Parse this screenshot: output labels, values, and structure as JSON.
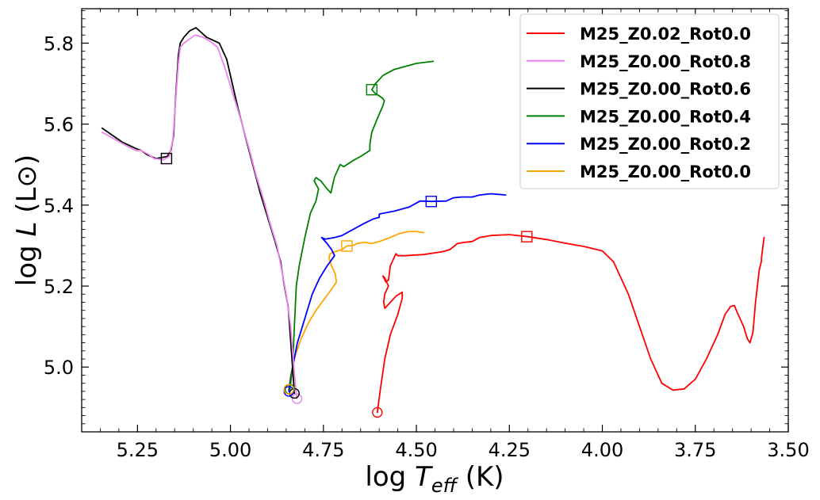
{
  "chart_data": {
    "type": "line",
    "title": "",
    "xlabel": "log T_eff (K)",
    "xlabel_parts": {
      "prefix": "log ",
      "symbol": "T",
      "subscript": "eff",
      "suffix": " (K)"
    },
    "ylabel": "log L (L⊙)",
    "ylabel_parts": {
      "prefix": "log ",
      "symbol": "L",
      "suffix": " (L⊙)"
    },
    "xlim": [
      5.4,
      3.5
    ],
    "ylim": [
      4.84,
      5.885
    ],
    "x_inverted": true,
    "xticks": [
      5.25,
      5.0,
      4.75,
      4.5,
      4.25,
      4.0,
      3.75,
      3.5
    ],
    "xtick_labels": [
      "5.25",
      "5.00",
      "4.75",
      "4.50",
      "4.25",
      "4.00",
      "3.75",
      "3.50"
    ],
    "yticks": [
      5.0,
      5.2,
      5.4,
      5.6,
      5.8
    ],
    "ytick_labels": [
      "5.0",
      "5.2",
      "5.4",
      "5.6",
      "5.8"
    ],
    "grid": false,
    "legend_position": "top-right",
    "series": [
      {
        "name": "M25_Z0.02_Rot0.0",
        "color": "#ff0000",
        "start_marker": [
          4.605,
          4.888
        ],
        "square_marker": [
          4.203,
          5.322
        ],
        "points": [
          [
            4.605,
            4.888
          ],
          [
            4.596,
            4.95
          ],
          [
            4.585,
            5.02
          ],
          [
            4.57,
            5.08
          ],
          [
            4.55,
            5.13
          ],
          [
            4.538,
            5.17
          ],
          [
            4.538,
            5.185
          ],
          [
            4.555,
            5.175
          ],
          [
            4.57,
            5.16
          ],
          [
            4.58,
            5.15
          ],
          [
            4.585,
            5.145
          ],
          [
            4.588,
            5.16
          ],
          [
            4.585,
            5.18
          ],
          [
            4.58,
            5.19
          ],
          [
            4.575,
            5.2
          ],
          [
            4.58,
            5.21
          ],
          [
            4.585,
            5.22
          ],
          [
            4.59,
            5.225
          ],
          [
            4.582,
            5.21
          ],
          [
            4.575,
            5.215
          ],
          [
            4.57,
            5.25
          ],
          [
            4.56,
            5.27
          ],
          [
            4.555,
            5.28
          ],
          [
            4.55,
            5.275
          ],
          [
            4.53,
            5.275
          ],
          [
            4.48,
            5.278
          ],
          [
            4.43,
            5.285
          ],
          [
            4.41,
            5.29
          ],
          [
            4.39,
            5.305
          ],
          [
            4.37,
            5.308
          ],
          [
            4.35,
            5.31
          ],
          [
            4.33,
            5.32
          ],
          [
            4.3,
            5.325
          ],
          [
            4.25,
            5.327
          ],
          [
            4.2,
            5.322
          ],
          [
            4.15,
            5.315
          ],
          [
            4.1,
            5.306
          ],
          [
            4.05,
            5.298
          ],
          [
            4.0,
            5.287
          ],
          [
            3.97,
            5.26
          ],
          [
            3.93,
            5.18
          ],
          [
            3.9,
            5.1
          ],
          [
            3.87,
            5.02
          ],
          [
            3.84,
            4.96
          ],
          [
            3.81,
            4.943
          ],
          [
            3.78,
            4.946
          ],
          [
            3.75,
            4.97
          ],
          [
            3.72,
            5.02
          ],
          [
            3.69,
            5.08
          ],
          [
            3.67,
            5.13
          ],
          [
            3.655,
            5.15
          ],
          [
            3.645,
            5.152
          ],
          [
            3.635,
            5.13
          ],
          [
            3.62,
            5.1
          ],
          [
            3.61,
            5.07
          ],
          [
            3.603,
            5.06
          ],
          [
            3.595,
            5.085
          ],
          [
            3.588,
            5.16
          ],
          [
            3.578,
            5.24
          ],
          [
            3.572,
            5.262
          ],
          [
            3.572,
            5.27
          ],
          [
            3.565,
            5.32
          ]
        ]
      },
      {
        "name": "M25_Z0.00_Rot0.8",
        "color": "#ee82ee",
        "start_marker": [
          4.821,
          4.922
        ],
        "square_marker": [
          5.172,
          5.515
        ],
        "points": [
          [
            4.821,
            4.922
          ],
          [
            4.826,
            4.96
          ],
          [
            4.838,
            5.1
          ],
          [
            4.85,
            5.18
          ],
          [
            4.86,
            5.23
          ],
          [
            4.875,
            5.3
          ],
          [
            4.895,
            5.36
          ],
          [
            4.91,
            5.41
          ],
          [
            4.93,
            5.47
          ],
          [
            4.95,
            5.54
          ],
          [
            4.975,
            5.62
          ],
          [
            4.995,
            5.68
          ],
          [
            5.015,
            5.74
          ],
          [
            5.035,
            5.79
          ],
          [
            5.055,
            5.805
          ],
          [
            5.075,
            5.815
          ],
          [
            5.095,
            5.82
          ],
          [
            5.11,
            5.81
          ],
          [
            5.125,
            5.8
          ],
          [
            5.135,
            5.79
          ],
          [
            5.14,
            5.75
          ],
          [
            5.148,
            5.65
          ],
          [
            5.155,
            5.56
          ],
          [
            5.165,
            5.52
          ],
          [
            5.18,
            5.512
          ],
          [
            5.205,
            5.515
          ],
          [
            5.22,
            5.525
          ],
          [
            5.24,
            5.535
          ],
          [
            5.255,
            5.535
          ],
          [
            5.29,
            5.552
          ],
          [
            5.345,
            5.58
          ]
        ]
      },
      {
        "name": "M25_Z0.00_Rot0.6",
        "color": "#000000",
        "start_marker": [
          4.828,
          4.935
        ],
        "square_marker": [
          5.172,
          5.515
        ],
        "points": [
          [
            4.828,
            4.935
          ],
          [
            4.833,
            5.0
          ],
          [
            4.84,
            5.09
          ],
          [
            4.845,
            5.15
          ],
          [
            4.855,
            5.2
          ],
          [
            4.865,
            5.26
          ],
          [
            4.88,
            5.31
          ],
          [
            4.9,
            5.37
          ],
          [
            4.92,
            5.43
          ],
          [
            4.94,
            5.5
          ],
          [
            4.96,
            5.57
          ],
          [
            4.98,
            5.64
          ],
          [
            4.995,
            5.7
          ],
          [
            5.01,
            5.76
          ],
          [
            5.03,
            5.8
          ],
          [
            5.065,
            5.815
          ],
          [
            5.085,
            5.832
          ],
          [
            5.093,
            5.838
          ],
          [
            5.11,
            5.83
          ],
          [
            5.125,
            5.815
          ],
          [
            5.135,
            5.8
          ],
          [
            5.14,
            5.77
          ],
          [
            5.147,
            5.67
          ],
          [
            5.153,
            5.57
          ],
          [
            5.16,
            5.535
          ],
          [
            5.17,
            5.52
          ],
          [
            5.2,
            5.515
          ],
          [
            5.225,
            5.525
          ],
          [
            5.24,
            5.535
          ],
          [
            5.255,
            5.54
          ],
          [
            5.29,
            5.555
          ],
          [
            5.345,
            5.59
          ]
        ]
      },
      {
        "name": "M25_Z0.00_Rot0.4",
        "color": "#008000",
        "start_marker": [
          4.84,
          4.945
        ],
        "square_marker": [
          4.62,
          5.685
        ],
        "points": [
          [
            4.84,
            4.945
          ],
          [
            4.833,
            5.0
          ],
          [
            4.828,
            5.1
          ],
          [
            4.823,
            5.2
          ],
          [
            4.815,
            5.25
          ],
          [
            4.8,
            5.32
          ],
          [
            4.785,
            5.38
          ],
          [
            4.77,
            5.41
          ],
          [
            4.763,
            5.44
          ],
          [
            4.775,
            5.46
          ],
          [
            4.77,
            5.468
          ],
          [
            4.757,
            5.46
          ],
          [
            4.74,
            5.44
          ],
          [
            4.73,
            5.43
          ],
          [
            4.72,
            5.47
          ],
          [
            4.705,
            5.5
          ],
          [
            4.695,
            5.495
          ],
          [
            4.67,
            5.51
          ],
          [
            4.65,
            5.52
          ],
          [
            4.625,
            5.535
          ],
          [
            4.625,
            5.55
          ],
          [
            4.62,
            5.58
          ],
          [
            4.602,
            5.62
          ],
          [
            4.59,
            5.645
          ],
          [
            4.586,
            5.658
          ],
          [
            4.59,
            5.663
          ],
          [
            4.6,
            5.67
          ],
          [
            4.61,
            5.675
          ],
          [
            4.62,
            5.685
          ],
          [
            4.61,
            5.7
          ],
          [
            4.59,
            5.72
          ],
          [
            4.56,
            5.735
          ],
          [
            4.5,
            5.75
          ],
          [
            4.455,
            5.755
          ]
        ]
      },
      {
        "name": "M25_Z0.00_Rot0.2",
        "color": "#0000ff",
        "start_marker": [
          4.843,
          4.94
        ],
        "square_marker": [
          4.46,
          5.409
        ],
        "points": [
          [
            4.843,
            4.94
          ],
          [
            4.835,
            4.99
          ],
          [
            4.82,
            5.06
          ],
          [
            4.8,
            5.12
          ],
          [
            4.78,
            5.18
          ],
          [
            4.76,
            5.22
          ],
          [
            4.74,
            5.25
          ],
          [
            4.72,
            5.275
          ],
          [
            4.728,
            5.29
          ],
          [
            4.74,
            5.305
          ],
          [
            4.755,
            5.32
          ],
          [
            4.745,
            5.316
          ],
          [
            4.72,
            5.32
          ],
          [
            4.7,
            5.325
          ],
          [
            4.68,
            5.335
          ],
          [
            4.66,
            5.345
          ],
          [
            4.64,
            5.355
          ],
          [
            4.615,
            5.366
          ],
          [
            4.6,
            5.37
          ],
          [
            4.6,
            5.378
          ],
          [
            4.56,
            5.385
          ],
          [
            4.52,
            5.395
          ],
          [
            4.49,
            5.41
          ],
          [
            4.46,
            5.409
          ],
          [
            4.42,
            5.41
          ],
          [
            4.4,
            5.418
          ],
          [
            4.38,
            5.42
          ],
          [
            4.35,
            5.42
          ],
          [
            4.33,
            5.425
          ],
          [
            4.3,
            5.428
          ],
          [
            4.26,
            5.425
          ]
        ]
      },
      {
        "name": "M25_Z0.00_Rot0.0",
        "color": "#ffa500",
        "start_marker": [
          4.843,
          4.945
        ],
        "square_marker": [
          4.687,
          5.299
        ],
        "points": [
          [
            4.843,
            4.945
          ],
          [
            4.838,
            4.98
          ],
          [
            4.825,
            5.03
          ],
          [
            4.81,
            5.07
          ],
          [
            4.79,
            5.11
          ],
          [
            4.77,
            5.14
          ],
          [
            4.75,
            5.165
          ],
          [
            4.73,
            5.19
          ],
          [
            4.715,
            5.21
          ],
          [
            4.718,
            5.23
          ],
          [
            4.728,
            5.25
          ],
          [
            4.735,
            5.27
          ],
          [
            4.732,
            5.28
          ],
          [
            4.72,
            5.285
          ],
          [
            4.7,
            5.29
          ],
          [
            4.687,
            5.299
          ],
          [
            4.67,
            5.3
          ],
          [
            4.66,
            5.305
          ],
          [
            4.64,
            5.308
          ],
          [
            4.62,
            5.305
          ],
          [
            4.6,
            5.31
          ],
          [
            4.57,
            5.32
          ],
          [
            4.545,
            5.33
          ],
          [
            4.52,
            5.335
          ],
          [
            4.5,
            5.335
          ],
          [
            4.48,
            5.332
          ]
        ]
      }
    ]
  }
}
